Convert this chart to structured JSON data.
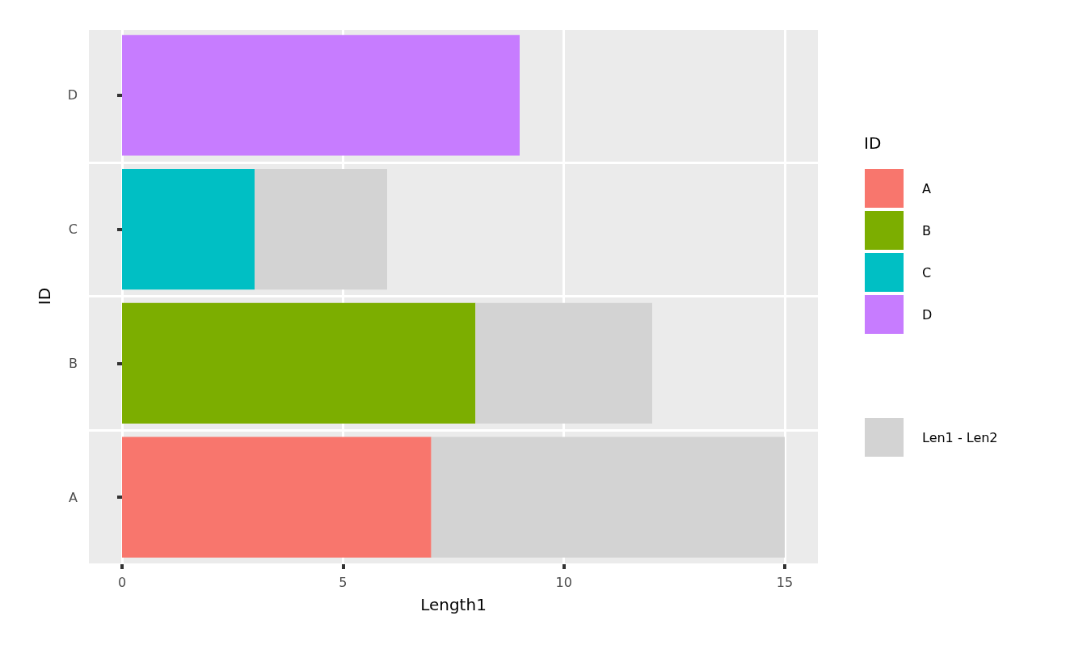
{
  "chart_data": {
    "type": "bar",
    "orientation": "horizontal",
    "stacked": true,
    "xlabel": "Length1",
    "ylabel": "ID",
    "legend_title": "ID",
    "categories": [
      "D",
      "C",
      "B",
      "A"
    ],
    "series": [
      {
        "colors": [
          "#c77cff",
          "#00bfc4",
          "#7cae00",
          "#f8766d"
        ],
        "values": [
          9,
          3,
          8,
          7
        ]
      },
      {
        "name": "Len1 - Len2",
        "color": "#d3d3d3",
        "values": [
          null,
          3,
          4,
          8
        ]
      }
    ],
    "xlim": [
      -0.75,
      15.75
    ],
    "xticks": [
      0,
      5,
      10,
      15
    ],
    "grid": true,
    "legend": "right"
  }
}
